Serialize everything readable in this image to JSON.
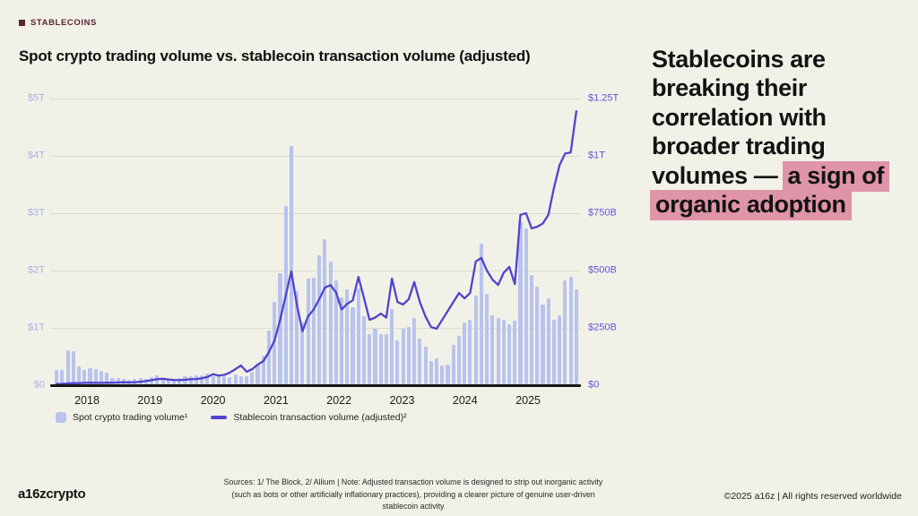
{
  "eyebrow": {
    "label": "STABLECOINS"
  },
  "title": "Spot crypto trading volume vs. stablecoin transaction volume (adjusted)",
  "headline": {
    "plain": "Stablecoins are breaking their correlation with broader trading volumes — ",
    "highlight": "a sign of organic adoption"
  },
  "legend": {
    "bars_label": "Spot crypto trading volume¹",
    "line_label": "Stablecoin transaction volume (adjusted)²"
  },
  "footer": {
    "logo": "a16zcrypto",
    "sources": "Sources: 1/ The Block, 2/ Allium   |   Note: Adjusted transaction volume is designed to strip out inorganic activity (such as bots or other artificially inflationary practices), providing a clearer picture of genuine user-driven stablecoin activity",
    "rights": "©2025 a16z | All rights reserved worldwide"
  },
  "colors": {
    "background": "#f1f1e7",
    "bar": "#b9c3ee",
    "line": "#5144cd",
    "left_axis": "#a9b3e6",
    "right_axis": "#6455da",
    "highlight": "#e094a7",
    "eyebrow": "#5b2334",
    "grid": "#dbdbcc"
  },
  "chart_data": {
    "type": "bar",
    "subtype": "bar+line dual-axis, monthly",
    "title": "Spot crypto trading volume vs. stablecoin transaction volume (adjusted)",
    "x_ticks": [
      "2018",
      "2019",
      "2020",
      "2021",
      "2022",
      "2023",
      "2024",
      "2025"
    ],
    "axis": {
      "left": {
        "ticks": [
          "$5T",
          "$4T",
          "$3T",
          "$2T",
          "$1T",
          "$0"
        ],
        "max": 5,
        "unit": "$T",
        "applies_to": "bars"
      },
      "right": {
        "ticks": [
          "$1.25T",
          "$1T",
          "$750B",
          "$500B",
          "$250B",
          "$0"
        ],
        "max": 1250,
        "unit": "$B",
        "applies_to": "line"
      }
    },
    "grid": "horizontal gridlines at each left-axis tick",
    "legend_position": "bottom-left",
    "months": [
      "2017-11",
      "2017-12",
      "2018-01",
      "2018-02",
      "2018-03",
      "2018-04",
      "2018-05",
      "2018-06",
      "2018-07",
      "2018-08",
      "2018-09",
      "2018-10",
      "2018-11",
      "2018-12",
      "2019-01",
      "2019-02",
      "2019-03",
      "2019-04",
      "2019-05",
      "2019-06",
      "2019-07",
      "2019-08",
      "2019-09",
      "2019-10",
      "2019-11",
      "2019-12",
      "2020-01",
      "2020-02",
      "2020-03",
      "2020-04",
      "2020-05",
      "2020-06",
      "2020-07",
      "2020-08",
      "2020-09",
      "2020-10",
      "2020-11",
      "2020-12",
      "2021-01",
      "2021-02",
      "2021-03",
      "2021-04",
      "2021-05",
      "2021-06",
      "2021-07",
      "2021-08",
      "2021-09",
      "2021-10",
      "2021-11",
      "2021-12",
      "2022-01",
      "2022-02",
      "2022-03",
      "2022-04",
      "2022-05",
      "2022-06",
      "2022-07",
      "2022-08",
      "2022-09",
      "2022-10",
      "2022-11",
      "2022-12",
      "2023-01",
      "2023-02",
      "2023-03",
      "2023-04",
      "2023-05",
      "2023-06",
      "2023-07",
      "2023-08",
      "2023-09",
      "2023-10",
      "2023-11",
      "2023-12",
      "2024-01",
      "2024-02",
      "2024-03",
      "2024-04",
      "2024-05",
      "2024-06",
      "2024-07",
      "2024-08",
      "2024-09",
      "2024-10",
      "2024-11",
      "2024-12",
      "2025-01",
      "2025-02",
      "2025-03",
      "2025-04",
      "2025-05",
      "2025-06",
      "2025-07",
      "2025-08"
    ],
    "series": {
      "bars": {
        "name": "Spot crypto trading volume",
        "unit": "$T",
        "values": [
          0.27,
          0.27,
          0.61,
          0.6,
          0.33,
          0.27,
          0.3,
          0.28,
          0.25,
          0.22,
          0.13,
          0.12,
          0.11,
          0.1,
          0.11,
          0.12,
          0.11,
          0.14,
          0.17,
          0.13,
          0.11,
          0.1,
          0.13,
          0.16,
          0.15,
          0.17,
          0.18,
          0.2,
          0.15,
          0.16,
          0.15,
          0.14,
          0.19,
          0.16,
          0.16,
          0.24,
          0.37,
          0.52,
          0.95,
          1.45,
          1.95,
          3.12,
          4.17,
          1.64,
          1.09,
          1.86,
          1.87,
          2.27,
          2.55,
          2.16,
          1.83,
          1.53,
          1.67,
          1.36,
          1.69,
          1.2,
          0.89,
          0.98,
          0.89,
          0.89,
          1.33,
          0.78,
          0.98,
          1.02,
          1.17,
          0.81,
          0.67,
          0.42,
          0.47,
          0.34,
          0.36,
          0.7,
          0.86,
          1.09,
          1.14,
          1.56,
          2.47,
          1.59,
          1.22,
          1.17,
          1.14,
          1.07,
          1.12,
          2.84,
          2.73,
          1.92,
          1.72,
          1.41,
          1.52,
          1.14,
          1.22,
          1.83,
          1.89,
          1.67
        ]
      },
      "line": {
        "name": "Stablecoin transaction volume (adjusted)",
        "unit": "$B",
        "values": [
          5,
          6,
          8,
          9,
          9,
          10,
          11,
          10,
          10,
          11,
          11,
          12,
          13,
          12,
          13,
          15,
          18,
          22,
          26,
          28,
          25,
          23,
          22,
          24,
          26,
          27,
          30,
          36,
          48,
          42,
          45,
          55,
          70,
          86,
          59,
          70,
          90,
          105,
          145,
          195,
          285,
          391,
          496,
          350,
          235,
          300,
          330,
          375,
          425,
          437,
          405,
          330,
          355,
          370,
          472,
          380,
          285,
          295,
          312,
          295,
          465,
          363,
          352,
          375,
          450,
          363,
          300,
          254,
          246,
          285,
          324,
          363,
          402,
          379,
          402,
          539,
          555,
          500,
          460,
          437,
          490,
          516,
          441,
          743,
          750,
          684,
          691,
          705,
          743,
          860,
          960,
          1010,
          1015,
          1195
        ]
      }
    }
  }
}
